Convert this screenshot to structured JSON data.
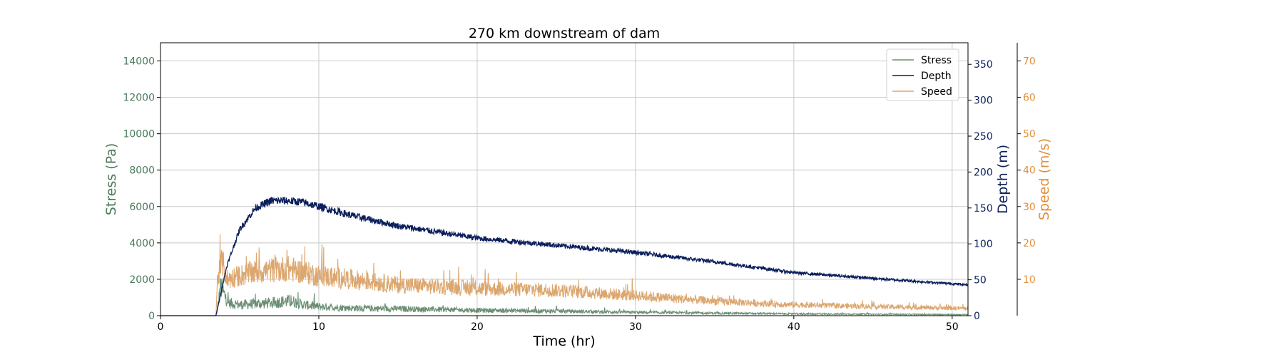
{
  "chart_data": {
    "type": "line",
    "title": "270 km downstream of dam",
    "xlabel": "Time (hr)",
    "xlim": [
      0,
      51
    ],
    "xticks": [
      0,
      10,
      20,
      30,
      40,
      50
    ],
    "grid": true,
    "legend_placement": "top-right",
    "axes": {
      "left": {
        "label": "Stress (Pa)",
        "color": "#4a7a5a",
        "ylim": [
          0,
          15000
        ],
        "ticks": [
          0,
          2000,
          4000,
          6000,
          8000,
          10000,
          12000,
          14000
        ]
      },
      "right1": {
        "label": "Depth (m)",
        "color": "#0b1f5c",
        "ylim": [
          0,
          380
        ],
        "ticks": [
          0,
          50,
          100,
          150,
          200,
          250,
          300,
          350
        ]
      },
      "right2": {
        "label": "Speed (m/s)",
        "color": "#e0913a",
        "ylim": [
          0,
          75
        ],
        "ticks": [
          10,
          20,
          30,
          40,
          50,
          60,
          70
        ]
      }
    },
    "series": [
      {
        "name": "Stress",
        "axis": "left",
        "color": "#6b8f74",
        "noise": 0.45,
        "spikes": true,
        "x": [
          0,
          3.5,
          3.6,
          3.8,
          4.0,
          4.3,
          5,
          6,
          7,
          8,
          8.5,
          9,
          10,
          12,
          15,
          20,
          25,
          30,
          35,
          40,
          45,
          51
        ],
        "y": [
          0,
          0,
          400,
          1600,
          1200,
          700,
          600,
          650,
          700,
          800,
          750,
          600,
          500,
          420,
          380,
          300,
          250,
          180,
          140,
          100,
          80,
          60
        ]
      },
      {
        "name": "Depth",
        "axis": "right1",
        "color": "#0b1f5c",
        "noise": 0.035,
        "spikes": false,
        "x": [
          0,
          3.5,
          3.8,
          4.2,
          5,
          6,
          7,
          8,
          9,
          10,
          12,
          15,
          20,
          25,
          30,
          35,
          40,
          45,
          51
        ],
        "y": [
          0,
          0,
          30,
          70,
          120,
          150,
          160,
          160,
          158,
          152,
          140,
          125,
          108,
          98,
          88,
          75,
          60,
          52,
          43
        ]
      },
      {
        "name": "Speed",
        "axis": "right2",
        "color": "#dca76f",
        "noise": 0.28,
        "spikes": true,
        "x": [
          0,
          3.5,
          3.6,
          3.9,
          4.2,
          5,
          6,
          7,
          8,
          9,
          10,
          12,
          15,
          20,
          25,
          30,
          35,
          40,
          45,
          51
        ],
        "y": [
          0,
          0,
          10,
          15,
          10,
          11,
          12,
          12.5,
          13,
          12,
          11,
          10,
          8.5,
          7.5,
          7,
          5.5,
          4,
          3,
          2.5,
          2
        ]
      }
    ]
  }
}
